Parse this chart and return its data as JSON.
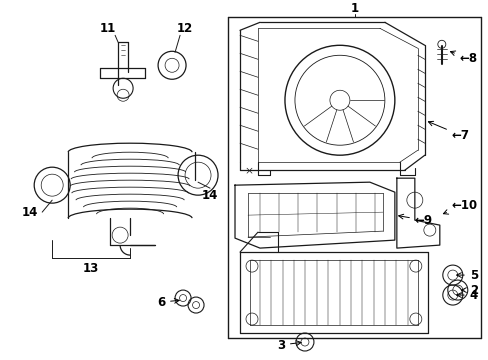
{
  "bg_color": "#ffffff",
  "line_color": "#1a1a1a",
  "fig_width": 4.89,
  "fig_height": 3.6,
  "dpi": 100,
  "font_size": 8.5
}
